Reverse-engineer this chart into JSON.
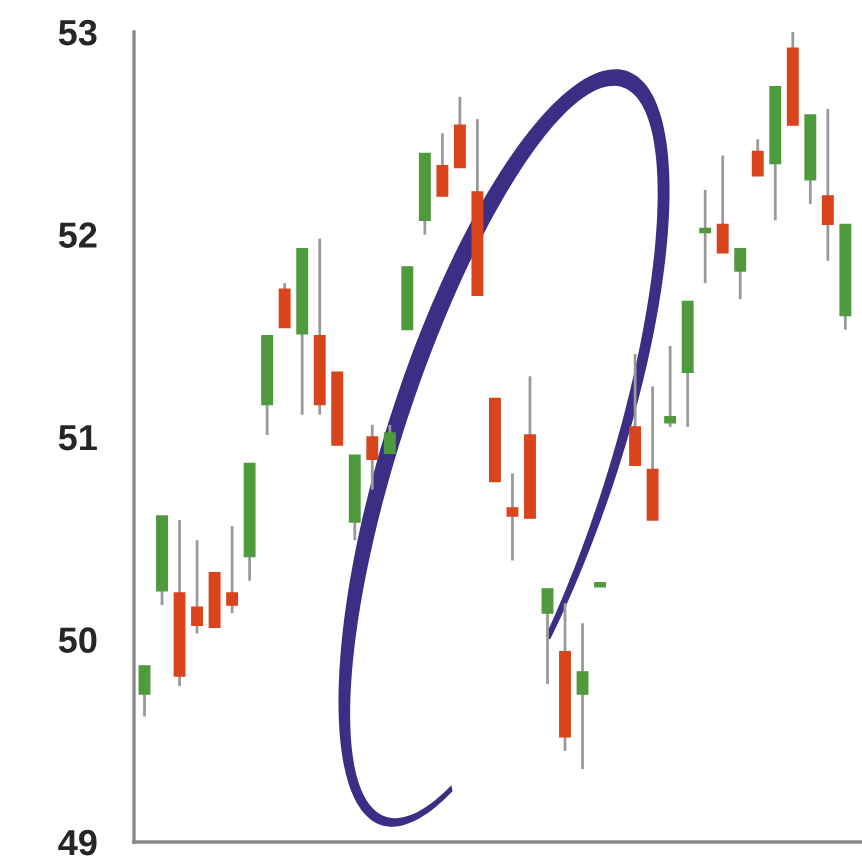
{
  "chart_data": {
    "type": "candlestick",
    "categories": [
      null,
      null,
      null,
      null,
      null,
      null,
      null,
      null,
      null,
      null,
      null,
      null,
      null,
      null,
      null,
      null,
      null,
      null,
      null,
      null,
      null,
      null,
      null,
      null,
      null,
      null,
      null,
      null,
      null,
      null,
      null,
      null,
      null,
      null,
      null,
      null,
      null,
      null,
      null,
      null,
      null
    ],
    "ohlc": [
      [
        49.73,
        49.87,
        49.62,
        49.87
      ],
      [
        50.24,
        50.61,
        50.17,
        50.61
      ],
      [
        50.23,
        50.59,
        49.77,
        49.82
      ],
      [
        50.16,
        50.49,
        50.03,
        50.07
      ],
      [
        50.33,
        50.33,
        50.06,
        50.06
      ],
      [
        50.23,
        50.56,
        50.13,
        50.17
      ],
      [
        50.41,
        50.87,
        50.29,
        50.87
      ],
      [
        51.16,
        51.5,
        51.01,
        51.5
      ],
      [
        51.73,
        51.76,
        51.54,
        51.54
      ],
      [
        51.51,
        51.93,
        51.11,
        51.93
      ],
      [
        51.5,
        51.98,
        51.11,
        51.16
      ],
      [
        51.32,
        51.32,
        50.96,
        50.96
      ],
      [
        50.58,
        50.91,
        50.49,
        50.91
      ],
      [
        51.0,
        51.06,
        50.74,
        50.89
      ],
      [
        50.92,
        51.06,
        50.92,
        51.02
      ],
      [
        51.53,
        51.84,
        51.53,
        51.84
      ],
      [
        52.07,
        52.4,
        52.0,
        52.4
      ],
      [
        52.34,
        52.5,
        52.19,
        52.19
      ],
      [
        52.54,
        52.68,
        52.33,
        52.33
      ],
      [
        52.21,
        52.57,
        51.7,
        51.7
      ],
      [
        51.19,
        51.19,
        50.78,
        50.78
      ],
      [
        50.65,
        50.82,
        50.39,
        50.61
      ],
      [
        51.01,
        51.3,
        50.6,
        50.6
      ],
      [
        50.13,
        50.25,
        49.78,
        50.25
      ],
      [
        49.94,
        50.18,
        49.45,
        49.52
      ],
      [
        49.73,
        50.08,
        49.36,
        49.84
      ],
      [
        50.26,
        50.28,
        50.26,
        50.28
      ],
      null,
      [
        51.05,
        51.41,
        50.86,
        50.86
      ],
      [
        50.84,
        51.25,
        50.59,
        50.59
      ],
      [
        51.07,
        51.45,
        51.05,
        51.1
      ],
      [
        51.32,
        51.67,
        51.05,
        51.67
      ],
      [
        52.01,
        52.22,
        51.76,
        52.03
      ],
      [
        52.05,
        52.39,
        51.91,
        51.91
      ],
      [
        51.82,
        51.93,
        51.68,
        51.93
      ],
      [
        52.41,
        52.47,
        52.29,
        52.29
      ],
      [
        52.35,
        52.73,
        52.07,
        52.73
      ],
      [
        52.92,
        53.0,
        52.54,
        52.54
      ],
      [
        52.27,
        52.59,
        52.15,
        52.59
      ],
      [
        52.19,
        52.62,
        51.87,
        52.05
      ],
      [
        51.6,
        52.05,
        51.53,
        52.05
      ]
    ],
    "colors": [
      "#4f9a3c",
      "#4f9a3c",
      "#d9441c",
      "#d9441c",
      "#d9441c",
      "#d9441c",
      "#4f9a3c",
      "#4f9a3c",
      "#d9441c",
      "#4f9a3c",
      "#d9441c",
      "#d9441c",
      "#4f9a3c",
      "#d9441c",
      "#4f9a3c",
      "#4f9a3c",
      "#4f9a3c",
      "#d9441c",
      "#d9441c",
      "#d9441c",
      "#d9441c",
      "#d9441c",
      "#d9441c",
      "#4f9a3c",
      "#d9441c",
      "#4f9a3c",
      "#4f9a3c",
      null,
      "#d9441c",
      "#d9441c",
      "#4f9a3c",
      "#4f9a3c",
      "#4f9a3c",
      "#d9441c",
      "#4f9a3c",
      "#d9441c",
      "#4f9a3c",
      "#d9441c",
      "#4f9a3c",
      "#d9441c",
      "#4f9a3c"
    ],
    "ylim": [
      49,
      53
    ],
    "yticks": [
      49,
      50,
      51,
      52,
      53
    ],
    "tick_labels": "y"
  }
}
